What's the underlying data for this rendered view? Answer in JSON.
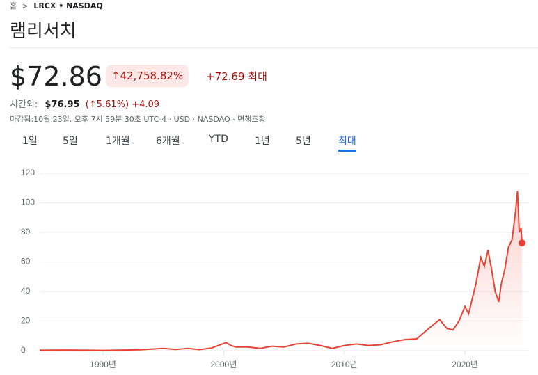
{
  "breadcrumb": {
    "home": "홈",
    "ticker": "LRCX • NASDAQ"
  },
  "company": "램리서치",
  "quote": {
    "price": "$72.86",
    "change_pct": "42,758.82%",
    "change_abs": "+72.69",
    "period": "최대"
  },
  "after_hours": {
    "label": "시간외:",
    "price": "$76.95",
    "change_pct": "(↑5.61%)",
    "change_abs": "+4.09"
  },
  "status": "마감됨:10월 23일, 오후 7시 59분 30초 UTC-4 · USD · NASDAQ · 면책조항",
  "tabs": [
    "1일",
    "5일",
    "1개월",
    "6개월",
    "YTD",
    "1년",
    "5년",
    "최대"
  ],
  "selected_tab": 7,
  "chart_data": {
    "type": "line",
    "color": "#e94235",
    "x": [
      1984.75,
      1987,
      1990,
      1993,
      1995,
      1996,
      1997,
      1998,
      1999,
      2000.2,
      2000.6,
      2001,
      2002,
      2003,
      2004,
      2005,
      2006,
      2007,
      2008,
      2009,
      2010,
      2011,
      2011.5,
      2012,
      2013,
      2014,
      2015,
      2016,
      2017,
      2017.9,
      2018.5,
      2019,
      2019.5,
      2020,
      2020.3,
      2020.9,
      2021.3,
      2021.6,
      2021.9,
      2022.2,
      2022.5,
      2022.8,
      2023,
      2023.3,
      2023.6,
      2023.9,
      2024.2,
      2024.35,
      2024.5,
      2024.65,
      2024.72
    ],
    "values": [
      0.3,
      0.4,
      0.2,
      0.6,
      1.5,
      0.8,
      1.5,
      0.7,
      1.8,
      5.5,
      3.5,
      2.5,
      2.5,
      1.5,
      3,
      2.5,
      4.5,
      5,
      3.5,
      1.5,
      3.5,
      4.5,
      4,
      3.5,
      4,
      6,
      7.5,
      8,
      15,
      21,
      15,
      14,
      20,
      30,
      25,
      45,
      63,
      57,
      68,
      55,
      40,
      33,
      45,
      55,
      70,
      75,
      95,
      108,
      80,
      83,
      72.86
    ],
    "xlim": [
      1984.75,
      2025.3
    ],
    "xticks": [
      {
        "value": 1990,
        "label": "1990년"
      },
      {
        "value": 2000,
        "label": "2000년"
      },
      {
        "value": 2010,
        "label": "2010년"
      },
      {
        "value": 2020,
        "label": "2020년"
      }
    ],
    "ylim": [
      0,
      120
    ],
    "yticks": [
      0,
      20,
      40,
      60,
      80,
      100,
      120
    ],
    "grid": true
  }
}
